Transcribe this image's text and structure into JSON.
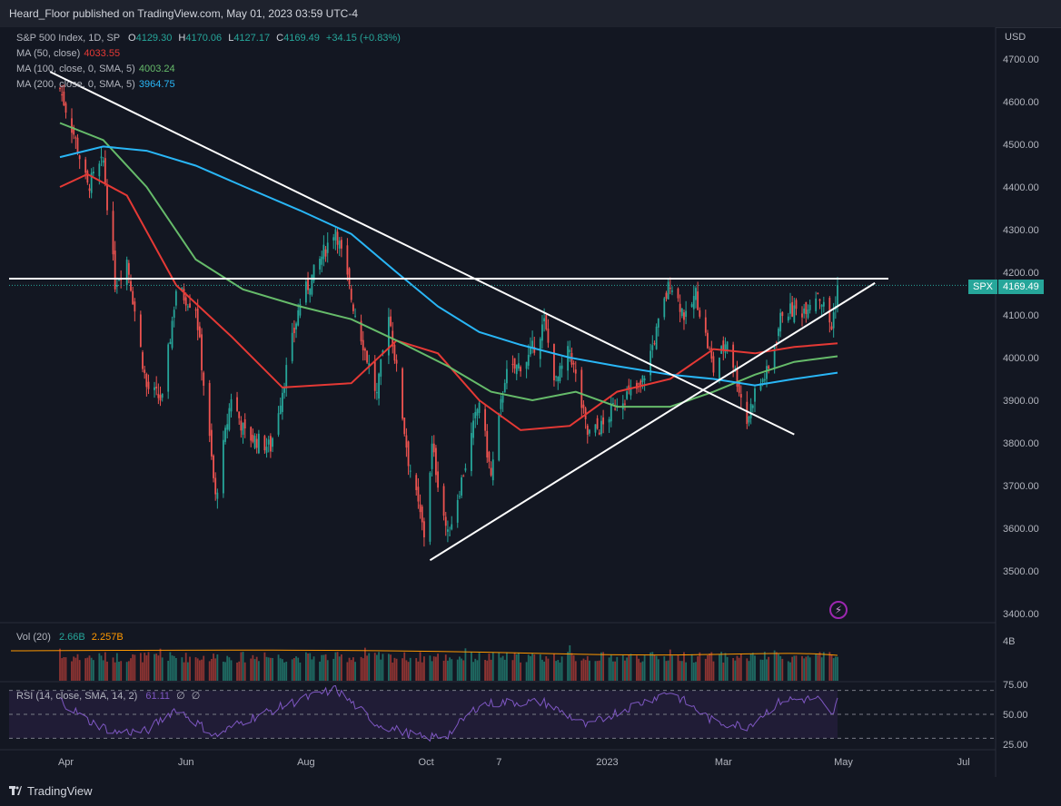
{
  "header": {
    "publisher": "Heard_Floor published on TradingView.com, May 01, 2023 03:59 UTC-4"
  },
  "legend": {
    "symbol": "S&P 500 Index, 1D, SP",
    "o_label": "O",
    "o": "4129.30",
    "h_label": "H",
    "h": "4170.06",
    "l_label": "L",
    "l": "4127.17",
    "c_label": "C",
    "c": "4169.49",
    "change": "+34.15 (+0.83%)",
    "ma50_label": "MA (50, close)",
    "ma50": "4033.55",
    "ma100_label": "MA (100, close, 0, SMA, 5)",
    "ma100": "4003.24",
    "ma200_label": "MA (200, close, 0, SMA, 5)",
    "ma200": "3964.75"
  },
  "vol_legend": {
    "label": "Vol (20)",
    "v1": "2.66B",
    "v2": "2.257B"
  },
  "rsi_legend": {
    "label": "RSI (14, close, SMA, 14, 2)",
    "v1": "61.11",
    "v2": "∅",
    "v3": "∅"
  },
  "price_badge": {
    "symbol": "SPX",
    "price": "4169.49"
  },
  "currency": "USD",
  "vol_axis_label": "4B",
  "brand": "TradingView",
  "colors": {
    "background": "#131722",
    "up": "#26a69a",
    "down": "#ef5350",
    "ma50": "#e53935",
    "ma100": "#66bb6a",
    "ma200": "#29b6f6",
    "trendline": "#ffffff",
    "rsi": "#7e57c2",
    "rsi_band": "#2a1f45"
  },
  "chart_data": {
    "type": "candlestick",
    "title": "S&P 500 Index, 1D, SP",
    "x_tick_labels": [
      "Apr",
      "Jun",
      "Aug",
      "Oct",
      "7",
      "2023",
      "Mar",
      "May",
      "Jul"
    ],
    "y_tick_labels": [
      "4700.00",
      "4600.00",
      "4500.00",
      "4400.00",
      "4300.00",
      "4200.00",
      "4100.00",
      "4000.00",
      "3900.00",
      "3800.00",
      "3700.00",
      "3600.00",
      "3500.00",
      "3400.00"
    ],
    "ylim": [
      3400,
      4700
    ],
    "last_close": 4169.49,
    "close_path": [
      {
        "date": "2022-03-29",
        "value": 4630
      },
      {
        "date": "2022-04-05",
        "value": 4525
      },
      {
        "date": "2022-04-12",
        "value": 4400
      },
      {
        "date": "2022-04-20",
        "value": 4460
      },
      {
        "date": "2022-04-26",
        "value": 4175
      },
      {
        "date": "2022-05-02",
        "value": 4230
      },
      {
        "date": "2022-05-12",
        "value": 3930
      },
      {
        "date": "2022-05-20",
        "value": 3900
      },
      {
        "date": "2022-05-27",
        "value": 4160
      },
      {
        "date": "2022-06-06",
        "value": 4120
      },
      {
        "date": "2022-06-16",
        "value": 3670
      },
      {
        "date": "2022-06-24",
        "value": 3910
      },
      {
        "date": "2022-07-01",
        "value": 3820
      },
      {
        "date": "2022-07-14",
        "value": 3790
      },
      {
        "date": "2022-07-29",
        "value": 4130
      },
      {
        "date": "2022-08-16",
        "value": 4305
      },
      {
        "date": "2022-08-24",
        "value": 4140
      },
      {
        "date": "2022-09-06",
        "value": 3910
      },
      {
        "date": "2022-09-12",
        "value": 4110
      },
      {
        "date": "2022-09-22",
        "value": 3760
      },
      {
        "date": "2022-09-30",
        "value": 3585
      },
      {
        "date": "2022-10-04",
        "value": 3790
      },
      {
        "date": "2022-10-12",
        "value": 3580
      },
      {
        "date": "2022-10-21",
        "value": 3750
      },
      {
        "date": "2022-10-28",
        "value": 3900
      },
      {
        "date": "2022-11-03",
        "value": 3720
      },
      {
        "date": "2022-11-10",
        "value": 3955
      },
      {
        "date": "2022-11-22",
        "value": 4000
      },
      {
        "date": "2022-11-30",
        "value": 4080
      },
      {
        "date": "2022-12-06",
        "value": 3940
      },
      {
        "date": "2022-12-13",
        "value": 4020
      },
      {
        "date": "2022-12-22",
        "value": 3820
      },
      {
        "date": "2022-12-30",
        "value": 3840
      },
      {
        "date": "2023-01-06",
        "value": 3900
      },
      {
        "date": "2023-01-18",
        "value": 3930
      },
      {
        "date": "2023-01-26",
        "value": 4060
      },
      {
        "date": "2023-02-02",
        "value": 4180
      },
      {
        "date": "2023-02-10",
        "value": 4090
      },
      {
        "date": "2023-02-15",
        "value": 4150
      },
      {
        "date": "2023-02-24",
        "value": 3970
      },
      {
        "date": "2023-03-03",
        "value": 4045
      },
      {
        "date": "2023-03-13",
        "value": 3850
      },
      {
        "date": "2023-03-17",
        "value": 3920
      },
      {
        "date": "2023-03-24",
        "value": 3970
      },
      {
        "date": "2023-03-31",
        "value": 4110
      },
      {
        "date": "2023-04-10",
        "value": 4110
      },
      {
        "date": "2023-04-18",
        "value": 4155
      },
      {
        "date": "2023-04-25",
        "value": 4070
      },
      {
        "date": "2023-04-28",
        "value": 4169.49
      }
    ],
    "moving_averages": [
      {
        "name": "MA (50, close)",
        "last": 4033.55,
        "points": [
          {
            "date": "2022-03-29",
            "value": 4400
          },
          {
            "date": "2022-04-12",
            "value": 4430
          },
          {
            "date": "2022-05-02",
            "value": 4380
          },
          {
            "date": "2022-05-27",
            "value": 4170
          },
          {
            "date": "2022-06-24",
            "value": 4050
          },
          {
            "date": "2022-07-20",
            "value": 3930
          },
          {
            "date": "2022-08-24",
            "value": 3940
          },
          {
            "date": "2022-09-16",
            "value": 4040
          },
          {
            "date": "2022-10-07",
            "value": 4010
          },
          {
            "date": "2022-10-28",
            "value": 3900
          },
          {
            "date": "2022-11-18",
            "value": 3830
          },
          {
            "date": "2022-12-13",
            "value": 3840
          },
          {
            "date": "2023-01-06",
            "value": 3920
          },
          {
            "date": "2023-02-02",
            "value": 3950
          },
          {
            "date": "2023-02-24",
            "value": 4020
          },
          {
            "date": "2023-03-17",
            "value": 4010
          },
          {
            "date": "2023-04-06",
            "value": 4025
          },
          {
            "date": "2023-04-28",
            "value": 4033.55
          }
        ]
      },
      {
        "name": "MA (100, close, 0, SMA, 5)",
        "last": 4003.24,
        "points": [
          {
            "date": "2022-03-29",
            "value": 4550
          },
          {
            "date": "2022-04-20",
            "value": 4510
          },
          {
            "date": "2022-05-12",
            "value": 4400
          },
          {
            "date": "2022-06-06",
            "value": 4230
          },
          {
            "date": "2022-06-30",
            "value": 4160
          },
          {
            "date": "2022-07-29",
            "value": 4120
          },
          {
            "date": "2022-08-24",
            "value": 4090
          },
          {
            "date": "2022-09-16",
            "value": 4040
          },
          {
            "date": "2022-10-12",
            "value": 3980
          },
          {
            "date": "2022-11-03",
            "value": 3920
          },
          {
            "date": "2022-11-24",
            "value": 3900
          },
          {
            "date": "2022-12-16",
            "value": 3920
          },
          {
            "date": "2023-01-06",
            "value": 3885
          },
          {
            "date": "2023-02-02",
            "value": 3885
          },
          {
            "date": "2023-02-24",
            "value": 3920
          },
          {
            "date": "2023-03-17",
            "value": 3960
          },
          {
            "date": "2023-04-06",
            "value": 3990
          },
          {
            "date": "2023-04-28",
            "value": 4003.24
          }
        ]
      },
      {
        "name": "MA (200, close, 0, SMA, 5)",
        "last": 3964.75,
        "points": [
          {
            "date": "2022-03-29",
            "value": 4470
          },
          {
            "date": "2022-04-20",
            "value": 4495
          },
          {
            "date": "2022-05-12",
            "value": 4485
          },
          {
            "date": "2022-06-06",
            "value": 4450
          },
          {
            "date": "2022-07-01",
            "value": 4400
          },
          {
            "date": "2022-07-29",
            "value": 4345
          },
          {
            "date": "2022-08-24",
            "value": 4290
          },
          {
            "date": "2022-09-16",
            "value": 4200
          },
          {
            "date": "2022-10-07",
            "value": 4120
          },
          {
            "date": "2022-10-28",
            "value": 4060
          },
          {
            "date": "2022-11-18",
            "value": 4030
          },
          {
            "date": "2022-12-13",
            "value": 4000
          },
          {
            "date": "2023-01-06",
            "value": 3980
          },
          {
            "date": "2023-02-02",
            "value": 3960
          },
          {
            "date": "2023-02-24",
            "value": 3950
          },
          {
            "date": "2023-03-17",
            "value": 3935
          },
          {
            "date": "2023-04-06",
            "value": 3950
          },
          {
            "date": "2023-04-28",
            "value": 3964.75
          }
        ]
      }
    ],
    "horizontal_lines": [
      {
        "value": 4185
      }
    ],
    "trendlines": [
      {
        "start": {
          "date": "2022-03-24",
          "value": 4670
        },
        "end": {
          "date": "2023-04-06",
          "value": 3820
        }
      },
      {
        "start": {
          "date": "2022-10-03",
          "value": 3525
        },
        "end": {
          "date": "2023-05-17",
          "value": 4175
        }
      }
    ],
    "volume": {
      "axis_label": "4B",
      "last": 2.66,
      "ma": 2.257,
      "unit": "B"
    },
    "rsi": {
      "levels": [
        70,
        50,
        30
      ],
      "last": 61.11,
      "ylim": [
        25,
        75
      ],
      "y_tick_labels": [
        "75.00",
        "50.00",
        "25.00"
      ],
      "points": [
        {
          "date": "2022-03-29",
          "value": 62
        },
        {
          "date": "2022-04-12",
          "value": 45
        },
        {
          "date": "2022-04-26",
          "value": 35
        },
        {
          "date": "2022-05-12",
          "value": 36
        },
        {
          "date": "2022-05-27",
          "value": 55
        },
        {
          "date": "2022-06-16",
          "value": 32
        },
        {
          "date": "2022-07-01",
          "value": 45
        },
        {
          "date": "2022-07-29",
          "value": 62
        },
        {
          "date": "2022-08-16",
          "value": 71
        },
        {
          "date": "2022-09-06",
          "value": 42
        },
        {
          "date": "2022-09-30",
          "value": 30
        },
        {
          "date": "2022-10-12",
          "value": 33
        },
        {
          "date": "2022-10-28",
          "value": 58
        },
        {
          "date": "2022-11-10",
          "value": 60
        },
        {
          "date": "2022-11-30",
          "value": 60
        },
        {
          "date": "2022-12-22",
          "value": 40
        },
        {
          "date": "2023-01-06",
          "value": 52
        },
        {
          "date": "2023-02-02",
          "value": 69
        },
        {
          "date": "2023-02-24",
          "value": 44
        },
        {
          "date": "2023-03-13",
          "value": 40
        },
        {
          "date": "2023-03-31",
          "value": 62
        },
        {
          "date": "2023-04-18",
          "value": 63
        },
        {
          "date": "2023-04-25",
          "value": 48
        },
        {
          "date": "2023-04-28",
          "value": 61.11
        }
      ]
    }
  }
}
